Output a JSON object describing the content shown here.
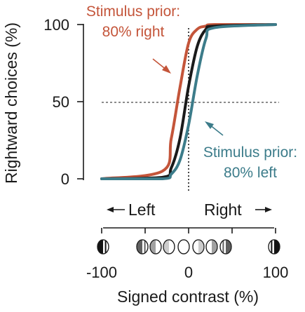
{
  "chart_data": {
    "type": "line",
    "ylabel": "Rightward choices (%)",
    "xlabel": "Signed contrast (%)",
    "xlim": [
      -100,
      100
    ],
    "ylim": [
      0,
      100
    ],
    "y_ticks": [
      "0",
      "50",
      "100"
    ],
    "x_ticks": [
      "-100",
      "0",
      "100"
    ],
    "x_tick_values": [
      -100,
      0,
      100
    ],
    "grid": false,
    "reference_lines": {
      "x": 0,
      "y": 50,
      "style": "dotted"
    },
    "direction_labels": {
      "left": "Left",
      "right": "Right"
    },
    "series": [
      {
        "color": "#c4553a",
        "x": [
          -100,
          -30,
          -20,
          -10,
          0,
          10,
          20,
          30,
          100
        ],
        "y": [
          0,
          5,
          26,
          59,
          88,
          97,
          99,
          100,
          100
        ]
      },
      {
        "color": "#1a1a1a",
        "x": [
          -100,
          -30,
          -20,
          -10,
          0,
          10,
          20,
          30,
          100
        ],
        "y": [
          0,
          1,
          7,
          26,
          60,
          86,
          97,
          99,
          100
        ]
      },
      {
        "color": "#3c7c8a",
        "x": [
          -100,
          -30,
          -20,
          -10,
          0,
          10,
          20,
          30,
          100
        ],
        "y": [
          0,
          0,
          3,
          12,
          35,
          67,
          91,
          98,
          100
        ]
      }
    ],
    "annotations": {
      "right_prior": {
        "line1": "Stimulus prior:",
        "line2": "80% right",
        "color": "#c4553a"
      },
      "left_prior": {
        "line1": "Stimulus prior:",
        "line2": "80% left",
        "color": "#3c7c8a"
      }
    },
    "contrast_icons": [
      {
        "x": -100,
        "contrast": 1.0
      },
      {
        "x": -50,
        "contrast": 0.65
      },
      {
        "x": -35,
        "contrast": 0.35
      },
      {
        "x": -20,
        "contrast": 0.15
      },
      {
        "x": 0,
        "contrast": 0
      },
      {
        "x": 20,
        "contrast": 0.15
      },
      {
        "x": 35,
        "contrast": 0.35
      },
      {
        "x": 50,
        "contrast": 0.65
      },
      {
        "x": 100,
        "contrast": 1.0
      }
    ]
  }
}
